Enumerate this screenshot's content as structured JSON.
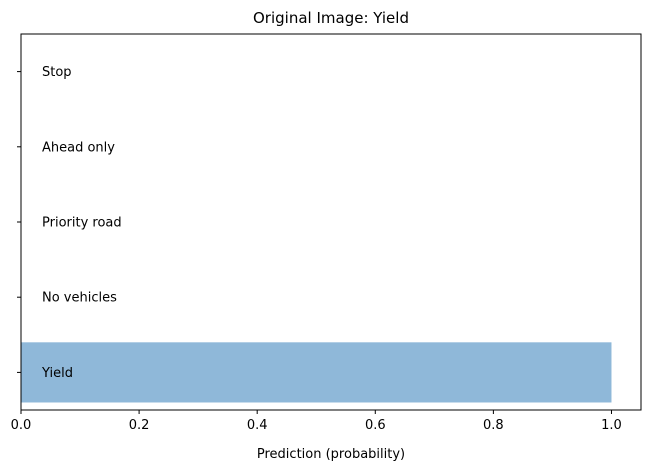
{
  "chart_data": {
    "type": "bar",
    "orientation": "horizontal",
    "title": "Original Image: Yield",
    "xlabel": "Prediction (probability)",
    "ylabel": "",
    "categories": [
      "Yield",
      "No vehicles",
      "Priority road",
      "Ahead only",
      "Stop"
    ],
    "values": [
      1.0,
      0.0,
      0.0,
      0.0,
      0.0
    ],
    "xlim": [
      0,
      1.05
    ],
    "xticks": [
      "0.0",
      "0.2",
      "0.4",
      "0.6",
      "0.8",
      "1.0"
    ],
    "xtick_values": [
      0.0,
      0.2,
      0.4,
      0.6,
      0.8,
      1.0
    ],
    "bar_color": "#8fb8d9",
    "grid": false,
    "legend": "none"
  }
}
